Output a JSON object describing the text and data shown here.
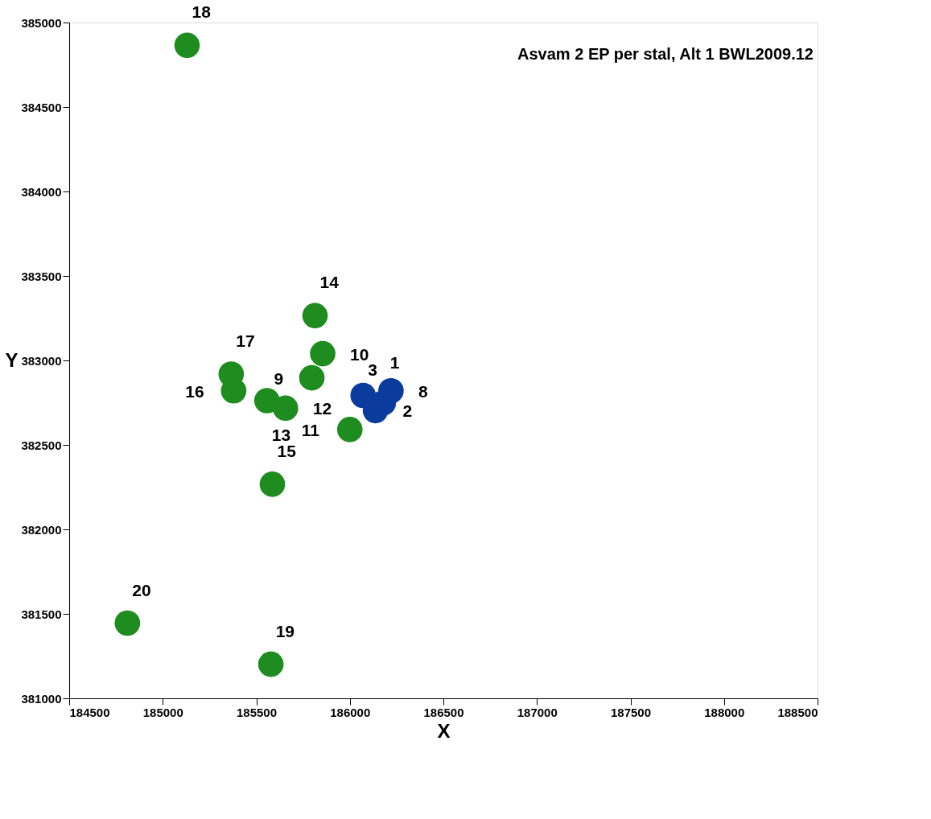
{
  "chart_data": {
    "type": "scatter",
    "title": "Asvam 2 EP per stal, Alt 1 BWL2009.12",
    "xlabel": "X",
    "ylabel": "Y",
    "xlim": [
      184500,
      188500
    ],
    "xticks": [
      184500,
      185000,
      185500,
      186000,
      186500,
      187000,
      187500,
      188000,
      188500
    ],
    "ylim": [
      381000,
      385000
    ],
    "yticks": [
      381000,
      381500,
      382000,
      382500,
      383000,
      383500,
      384000,
      384500,
      385000
    ],
    "grid": false,
    "series": [
      {
        "color": "#1e8c1e",
        "x": [
          185130,
          185814,
          185855,
          185797,
          185656,
          185557,
          185379,
          185366,
          185586,
          186000,
          184811,
          185578
        ],
        "values": [
          384865,
          383265,
          383040,
          382897,
          382717,
          382762,
          382820,
          382919,
          382267,
          382591,
          381445,
          381202
        ]
      },
      {
        "color": "#0a3c9e",
        "x": [
          186071,
          186137,
          186179,
          186220
        ],
        "values": [
          382793,
          382703,
          382748,
          382820
        ]
      }
    ],
    "annotations": [
      {
        "text": "18",
        "x": 185130,
        "y": 384865
      },
      {
        "text": "14",
        "x": 185814,
        "y": 383265
      },
      {
        "text": "10",
        "x": 185855,
        "y": 383040
      },
      {
        "text": "9",
        "x": 185797,
        "y": 382897
      },
      {
        "text": "12",
        "x": 185656,
        "y": 382717
      },
      {
        "text": "13",
        "x": 185557,
        "y": 382762
      },
      {
        "text": "17",
        "x": 185366,
        "y": 382919
      },
      {
        "text": "16",
        "x": 185379,
        "y": 382820
      },
      {
        "text": "15",
        "x": 185586,
        "y": 382267
      },
      {
        "text": "11",
        "x": 186000,
        "y": 382591
      },
      {
        "text": "20",
        "x": 184811,
        "y": 381445
      },
      {
        "text": "19",
        "x": 185578,
        "y": 381202
      },
      {
        "text": "1",
        "x": 186071,
        "y": 382793
      },
      {
        "text": "2",
        "x": 186137,
        "y": 382703
      },
      {
        "text": "3",
        "x": 186179,
        "y": 382748
      },
      {
        "text": "8",
        "x": 186220,
        "y": 382820
      }
    ]
  }
}
